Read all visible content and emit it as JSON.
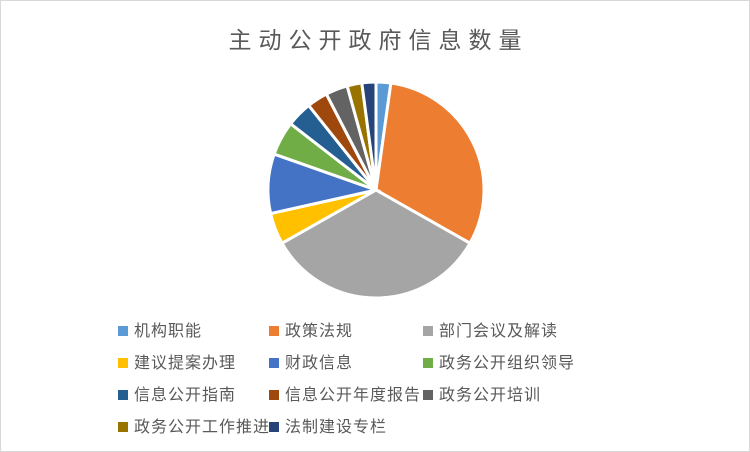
{
  "window": {
    "background": "#ffffff",
    "frame_border_color": "#d8d8d8",
    "title_color": "#595959",
    "legend_text_color": "#595959",
    "slice_gap_color": "#ffffff"
  },
  "chart_data": {
    "type": "pie",
    "title": "主动公开政府信息数量",
    "legend_position": "bottom",
    "start_angle_deg": 0,
    "direction": "clockwise",
    "values_unit": "percent_of_total_estimated",
    "categories": [
      "机构职能",
      "政策法规",
      "部门会议及解读",
      "建议提案办理",
      "财政信息",
      "政务公开组织领导",
      "信息公开指南",
      "信息公开年度报告",
      "政务公开培训",
      "政务公开工作推进",
      "法制建设专栏"
    ],
    "values": [
      2.2,
      31.0,
      33.6,
      4.7,
      8.9,
      5.1,
      3.8,
      3.1,
      3.3,
      2.2,
      2.1
    ],
    "colors": [
      "#5B9BD5",
      "#ED7D31",
      "#A5A5A5",
      "#FFC000",
      "#4472C4",
      "#70AD47",
      "#255E91",
      "#9E480E",
      "#636363",
      "#997300",
      "#264478"
    ]
  }
}
